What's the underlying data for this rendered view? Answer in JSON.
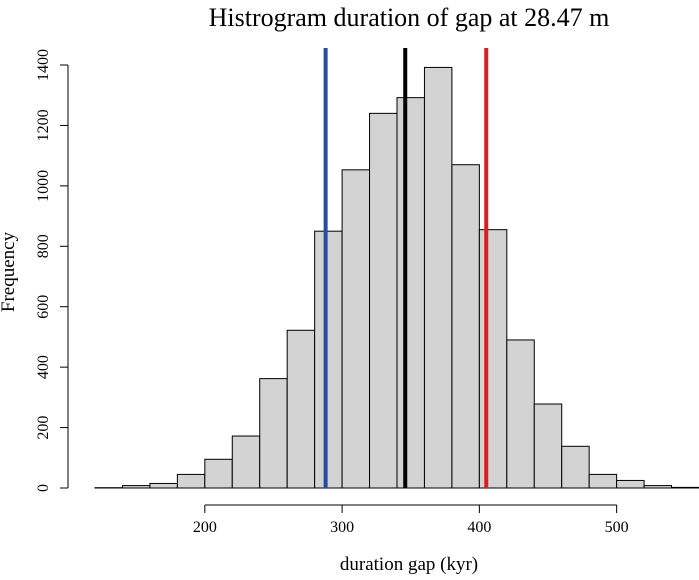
{
  "chart_data": {
    "type": "bar",
    "title": "Histrogram duration of gap at 28.47 m",
    "xlabel": "duration gap (kyr)",
    "ylabel": "Frequency",
    "xlim": [
      120,
      560
    ],
    "ylim": [
      0,
      1400
    ],
    "x_ticks": [
      200,
      300,
      400,
      500
    ],
    "y_ticks": [
      0,
      200,
      400,
      600,
      800,
      1000,
      1200,
      1400
    ],
    "bin_width": 20,
    "bins": [
      {
        "start": 120,
        "end": 140,
        "count": 1
      },
      {
        "start": 140,
        "end": 160,
        "count": 8
      },
      {
        "start": 160,
        "end": 180,
        "count": 15
      },
      {
        "start": 180,
        "end": 200,
        "count": 45
      },
      {
        "start": 200,
        "end": 220,
        "count": 95
      },
      {
        "start": 220,
        "end": 240,
        "count": 172
      },
      {
        "start": 240,
        "end": 260,
        "count": 362
      },
      {
        "start": 260,
        "end": 280,
        "count": 522
      },
      {
        "start": 280,
        "end": 300,
        "count": 850
      },
      {
        "start": 300,
        "end": 320,
        "count": 1053
      },
      {
        "start": 320,
        "end": 340,
        "count": 1240
      },
      {
        "start": 340,
        "end": 360,
        "count": 1292
      },
      {
        "start": 360,
        "end": 380,
        "count": 1392
      },
      {
        "start": 380,
        "end": 400,
        "count": 1070
      },
      {
        "start": 400,
        "end": 420,
        "count": 855
      },
      {
        "start": 420,
        "end": 440,
        "count": 490
      },
      {
        "start": 440,
        "end": 460,
        "count": 278
      },
      {
        "start": 460,
        "end": 480,
        "count": 138
      },
      {
        "start": 480,
        "end": 500,
        "count": 45
      },
      {
        "start": 500,
        "end": 520,
        "count": 25
      },
      {
        "start": 520,
        "end": 540,
        "count": 8
      },
      {
        "start": 540,
        "end": 560,
        "count": 2
      }
    ],
    "vlines": [
      {
        "x": 288,
        "color": "#2b4c9e"
      },
      {
        "x": 346,
        "color": "#000000"
      },
      {
        "x": 405,
        "color": "#d81e1e"
      }
    ],
    "bar_color": "#d3d3d3",
    "grid": false,
    "legend": "none"
  }
}
